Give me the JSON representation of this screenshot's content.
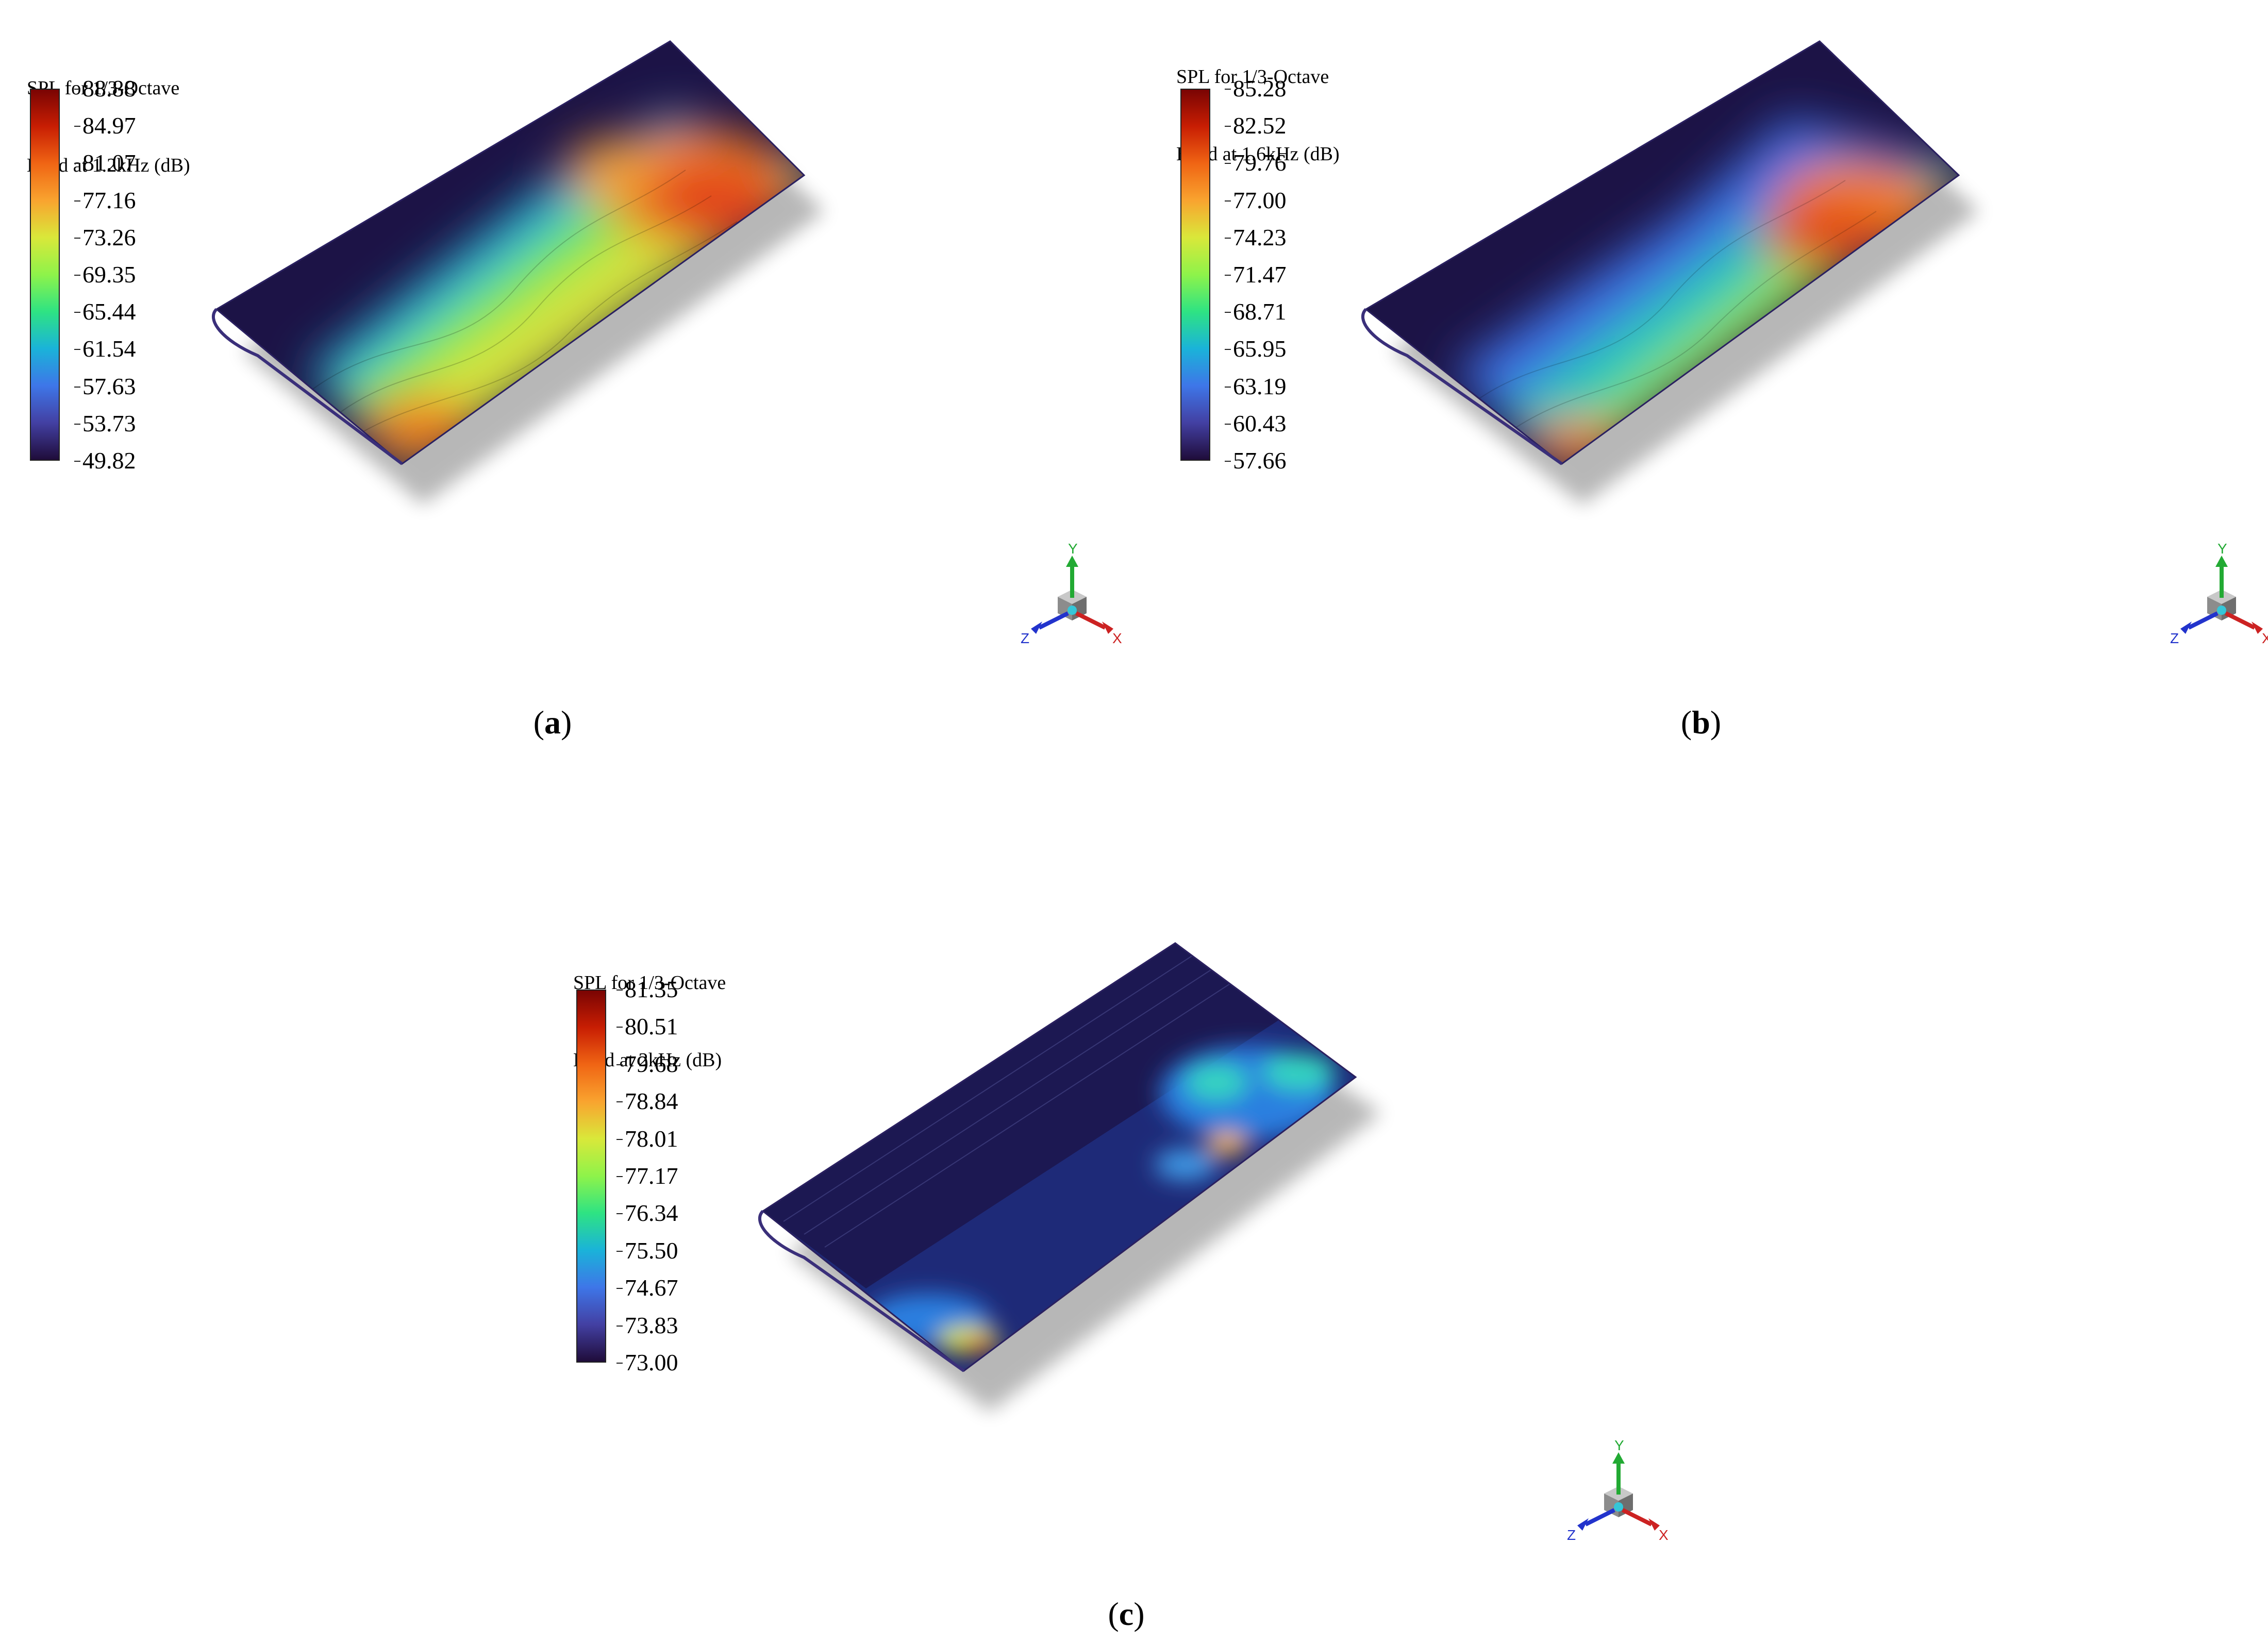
{
  "panels": [
    {
      "id": "a",
      "caption_letter": "a",
      "legend_title_line1": "SPL for 1/3-Octave",
      "legend_title_line2": "Band at 1.2kHz (dB)",
      "ticks": [
        "88.88",
        "84.97",
        "81.07",
        "77.16",
        "73.26",
        "69.35",
        "65.44",
        "61.54",
        "57.63",
        "53.73",
        "49.82"
      ],
      "color_max": 88.88,
      "color_min": 49.82,
      "hot_fraction": 0.85
    },
    {
      "id": "b",
      "caption_letter": "b",
      "legend_title_line1": "SPL for 1/3-Octave",
      "legend_title_line2": "Band at 1.6kHz (dB)",
      "ticks": [
        "85.28",
        "82.52",
        "79.76",
        "77.00",
        "74.23",
        "71.47",
        "68.71",
        "65.95",
        "63.19",
        "60.43",
        "57.66"
      ],
      "color_max": 85.28,
      "color_min": 57.66,
      "hot_fraction": 0.6
    },
    {
      "id": "c",
      "caption_letter": "c",
      "legend_title_line1": "SPL for 1/3-Octave",
      "legend_title_line2": "Band at 2kHz (dB)",
      "ticks": [
        "81.35",
        "80.51",
        "79.68",
        "78.84",
        "78.01",
        "77.17",
        "76.34",
        "75.50",
        "74.67",
        "73.83",
        "73.00"
      ],
      "color_max": 81.35,
      "color_min": 73.0,
      "hot_fraction": 0.2
    }
  ],
  "axis_triad": {
    "x_label": "X",
    "y_label": "Y",
    "z_label": "Z",
    "x_color": "#cc2222",
    "y_color": "#22aa33",
    "z_color": "#2233cc"
  },
  "colormap": [
    "#7a0403",
    "#c81e03",
    "#f06514",
    "#f9a42f",
    "#d9e83a",
    "#8ef34a",
    "#2ee383",
    "#1ab3d9",
    "#3e76e8",
    "#4340a3",
    "#1f0c3a"
  ],
  "background_surface_color": "#1c1346"
}
